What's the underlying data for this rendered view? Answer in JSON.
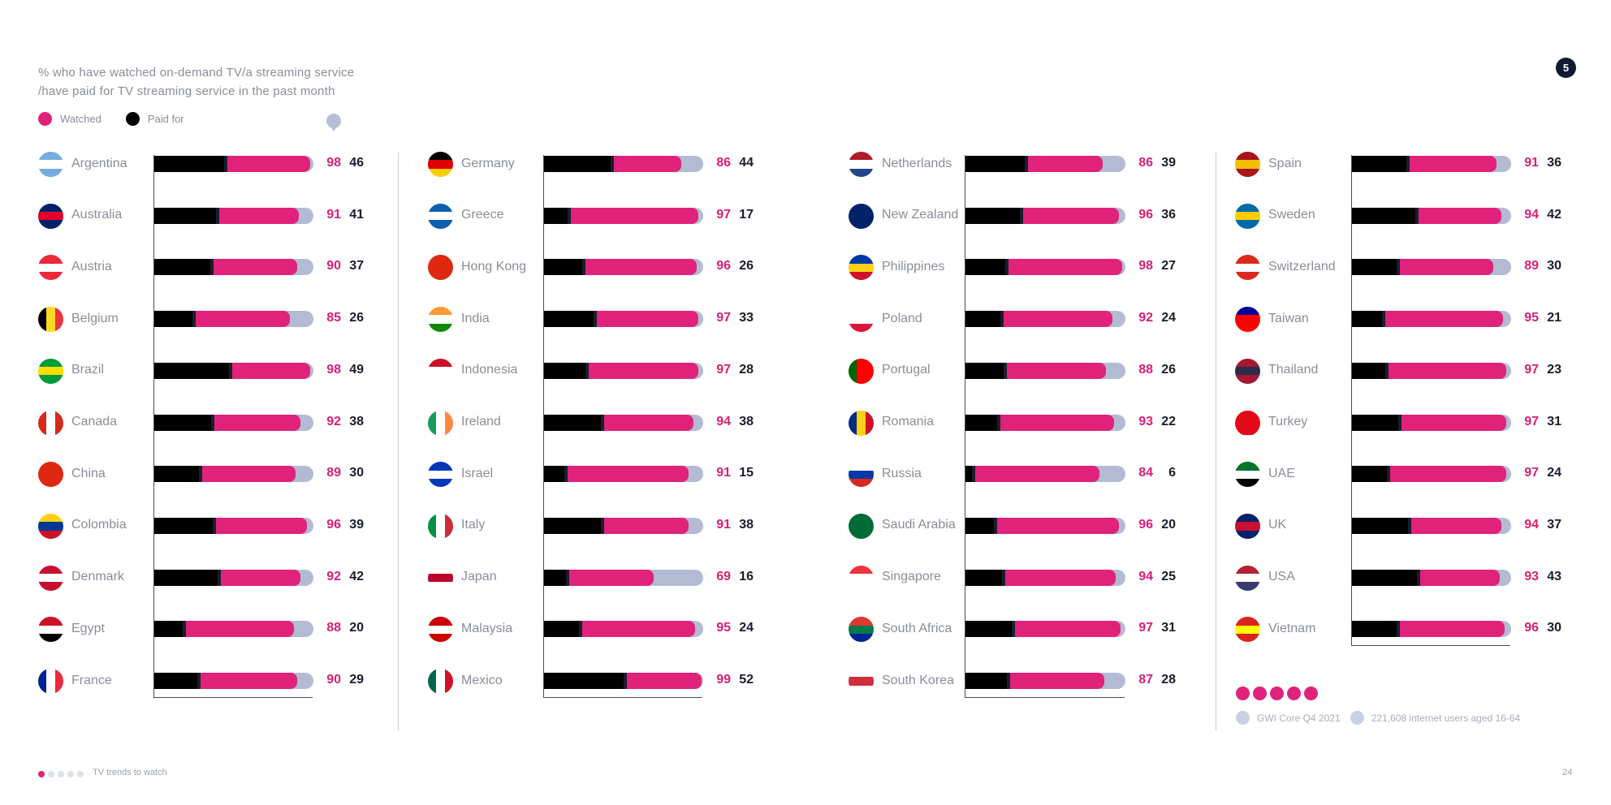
{
  "subtitle_line1": "% who have watched on-demand TV/a streaming service",
  "subtitle_line2": "/have paid for TV streaming service in the past month",
  "badge": "5",
  "colors": {
    "watched": "#e0227a",
    "paid": "#000000",
    "track": "#b3bbd4"
  },
  "chart_data": {
    "type": "bar",
    "value_range": [
      0,
      100
    ],
    "series": [
      {
        "name": "Watched",
        "color": "#e0227a"
      },
      {
        "name": "Paid for",
        "color": "#000000"
      }
    ],
    "countries": [
      {
        "name": "Argentina",
        "watched": 98,
        "paid": 46,
        "flag": [
          "#74acdf",
          "#ffffff",
          "#74acdf"
        ]
      },
      {
        "name": "Australia",
        "watched": 91,
        "paid": 41,
        "flag": [
          "#012169",
          "#e4002b",
          "#012169"
        ]
      },
      {
        "name": "Austria",
        "watched": 90,
        "paid": 37,
        "flag": [
          "#ed2939",
          "#ffffff",
          "#ed2939"
        ]
      },
      {
        "name": "Belgium",
        "watched": 85,
        "paid": 26,
        "flag": [
          "#000000",
          "#fdda24",
          "#ef3340"
        ],
        "vertical": true
      },
      {
        "name": "Brazil",
        "watched": 98,
        "paid": 49,
        "flag": [
          "#009c3b",
          "#ffdf00",
          "#009c3b"
        ]
      },
      {
        "name": "Canada",
        "watched": 92,
        "paid": 38,
        "flag": [
          "#d52b1e",
          "#ffffff",
          "#d52b1e"
        ],
        "vertical": true
      },
      {
        "name": "China",
        "watched": 89,
        "paid": 30,
        "flag": [
          "#de2910",
          "#de2910",
          "#de2910"
        ]
      },
      {
        "name": "Colombia",
        "watched": 96,
        "paid": 39,
        "flag": [
          "#fcd116",
          "#003893",
          "#ce1126"
        ]
      },
      {
        "name": "Denmark",
        "watched": 92,
        "paid": 42,
        "flag": [
          "#c8102e",
          "#ffffff",
          "#c8102e"
        ]
      },
      {
        "name": "Egypt",
        "watched": 88,
        "paid": 20,
        "flag": [
          "#ce1126",
          "#ffffff",
          "#000000"
        ]
      },
      {
        "name": "France",
        "watched": 90,
        "paid": 29,
        "flag": [
          "#002395",
          "#ffffff",
          "#ed2939"
        ],
        "vertical": true
      },
      {
        "name": "Germany",
        "watched": 86,
        "paid": 44,
        "flag": [
          "#000000",
          "#dd0000",
          "#ffce00"
        ]
      },
      {
        "name": "Greece",
        "watched": 97,
        "paid": 17,
        "flag": [
          "#0d5eaf",
          "#ffffff",
          "#0d5eaf"
        ]
      },
      {
        "name": "Hong Kong",
        "watched": 96,
        "paid": 26,
        "flag": [
          "#de2910",
          "#de2910",
          "#de2910"
        ]
      },
      {
        "name": "India",
        "watched": 97,
        "paid": 33,
        "flag": [
          "#ff9933",
          "#ffffff",
          "#138808"
        ]
      },
      {
        "name": "Indonesia",
        "watched": 97,
        "paid": 28,
        "flag": [
          "#ce1126",
          "#ffffff",
          "#ffffff"
        ]
      },
      {
        "name": "Ireland",
        "watched": 94,
        "paid": 38,
        "flag": [
          "#169b62",
          "#ffffff",
          "#ff883e"
        ],
        "vertical": true
      },
      {
        "name": "Israel",
        "watched": 91,
        "paid": 15,
        "flag": [
          "#0038b8",
          "#ffffff",
          "#0038b8"
        ]
      },
      {
        "name": "Italy",
        "watched": 91,
        "paid": 38,
        "flag": [
          "#009246",
          "#ffffff",
          "#ce2b37"
        ],
        "vertical": true
      },
      {
        "name": "Japan",
        "watched": 69,
        "paid": 16,
        "flag": [
          "#ffffff",
          "#bc002d",
          "#ffffff"
        ]
      },
      {
        "name": "Malaysia",
        "watched": 95,
        "paid": 24,
        "flag": [
          "#cc0001",
          "#ffffff",
          "#cc0001"
        ]
      },
      {
        "name": "Mexico",
        "watched": 99,
        "paid": 52,
        "flag": [
          "#006847",
          "#ffffff",
          "#ce1126"
        ],
        "vertical": true
      },
      {
        "name": "Netherlands",
        "watched": 86,
        "paid": 39,
        "flag": [
          "#ae1c28",
          "#ffffff",
          "#21468b"
        ]
      },
      {
        "name": "New Zealand",
        "watched": 96,
        "paid": 36,
        "flag": [
          "#012169",
          "#012169",
          "#012169"
        ]
      },
      {
        "name": "Philippines",
        "watched": 98,
        "paid": 27,
        "flag": [
          "#0038a8",
          "#fcd116",
          "#ce1126"
        ]
      },
      {
        "name": "Poland",
        "watched": 92,
        "paid": 24,
        "flag": [
          "#ffffff",
          "#ffffff",
          "#dc143c"
        ]
      },
      {
        "name": "Portugal",
        "watched": 88,
        "paid": 26,
        "flag": [
          "#006600",
          "#ff0000",
          "#ff0000"
        ],
        "vertical": true
      },
      {
        "name": "Romania",
        "watched": 93,
        "paid": 22,
        "flag": [
          "#002b7f",
          "#fcd116",
          "#ce1126"
        ],
        "vertical": true
      },
      {
        "name": "Russia",
        "watched": 84,
        "paid": 6,
        "flag": [
          "#ffffff",
          "#0039a6",
          "#d52b1e"
        ]
      },
      {
        "name": "Saudi Arabia",
        "watched": 96,
        "paid": 20,
        "flag": [
          "#006c35",
          "#006c35",
          "#006c35"
        ]
      },
      {
        "name": "Singapore",
        "watched": 94,
        "paid": 25,
        "flag": [
          "#ef3340",
          "#ffffff",
          "#ffffff"
        ]
      },
      {
        "name": "South Africa",
        "watched": 97,
        "paid": 31,
        "flag": [
          "#de3831",
          "#007a4d",
          "#002395"
        ]
      },
      {
        "name": "South Korea",
        "watched": 87,
        "paid": 28,
        "flag": [
          "#ffffff",
          "#cd2e3a",
          "#ffffff"
        ]
      },
      {
        "name": "Spain",
        "watched": 91,
        "paid": 36,
        "flag": [
          "#aa151b",
          "#f1bf00",
          "#aa151b"
        ]
      },
      {
        "name": "Sweden",
        "watched": 94,
        "paid": 42,
        "flag": [
          "#006aa7",
          "#fecc00",
          "#006aa7"
        ]
      },
      {
        "name": "Switzerland",
        "watched": 89,
        "paid": 30,
        "flag": [
          "#da291c",
          "#ffffff",
          "#da291c"
        ]
      },
      {
        "name": "Taiwan",
        "watched": 95,
        "paid": 21,
        "flag": [
          "#000095",
          "#fe0000",
          "#fe0000"
        ]
      },
      {
        "name": "Thailand",
        "watched": 97,
        "paid": 23,
        "flag": [
          "#a51931",
          "#2d2a4a",
          "#a51931"
        ]
      },
      {
        "name": "Turkey",
        "watched": 97,
        "paid": 31,
        "flag": [
          "#e30a17",
          "#e30a17",
          "#e30a17"
        ]
      },
      {
        "name": "UAE",
        "watched": 97,
        "paid": 24,
        "flag": [
          "#00732f",
          "#ffffff",
          "#000000"
        ]
      },
      {
        "name": "UK",
        "watched": 94,
        "paid": 37,
        "flag": [
          "#012169",
          "#c8102e",
          "#012169"
        ]
      },
      {
        "name": "USA",
        "watched": 93,
        "paid": 43,
        "flag": [
          "#b22234",
          "#ffffff",
          "#3c3b6e"
        ]
      },
      {
        "name": "Vietnam",
        "watched": 96,
        "paid": 30,
        "flag": [
          "#da251d",
          "#ffff00",
          "#da251d"
        ]
      }
    ]
  },
  "legend": {
    "watched": "Watched",
    "paid": "Paid for"
  },
  "source": {
    "survey": "GWI Core Q4 2021",
    "sample": "221,608 internet users aged 16-64"
  },
  "footer": {
    "label": "TV trends to watch",
    "page": "24"
  }
}
